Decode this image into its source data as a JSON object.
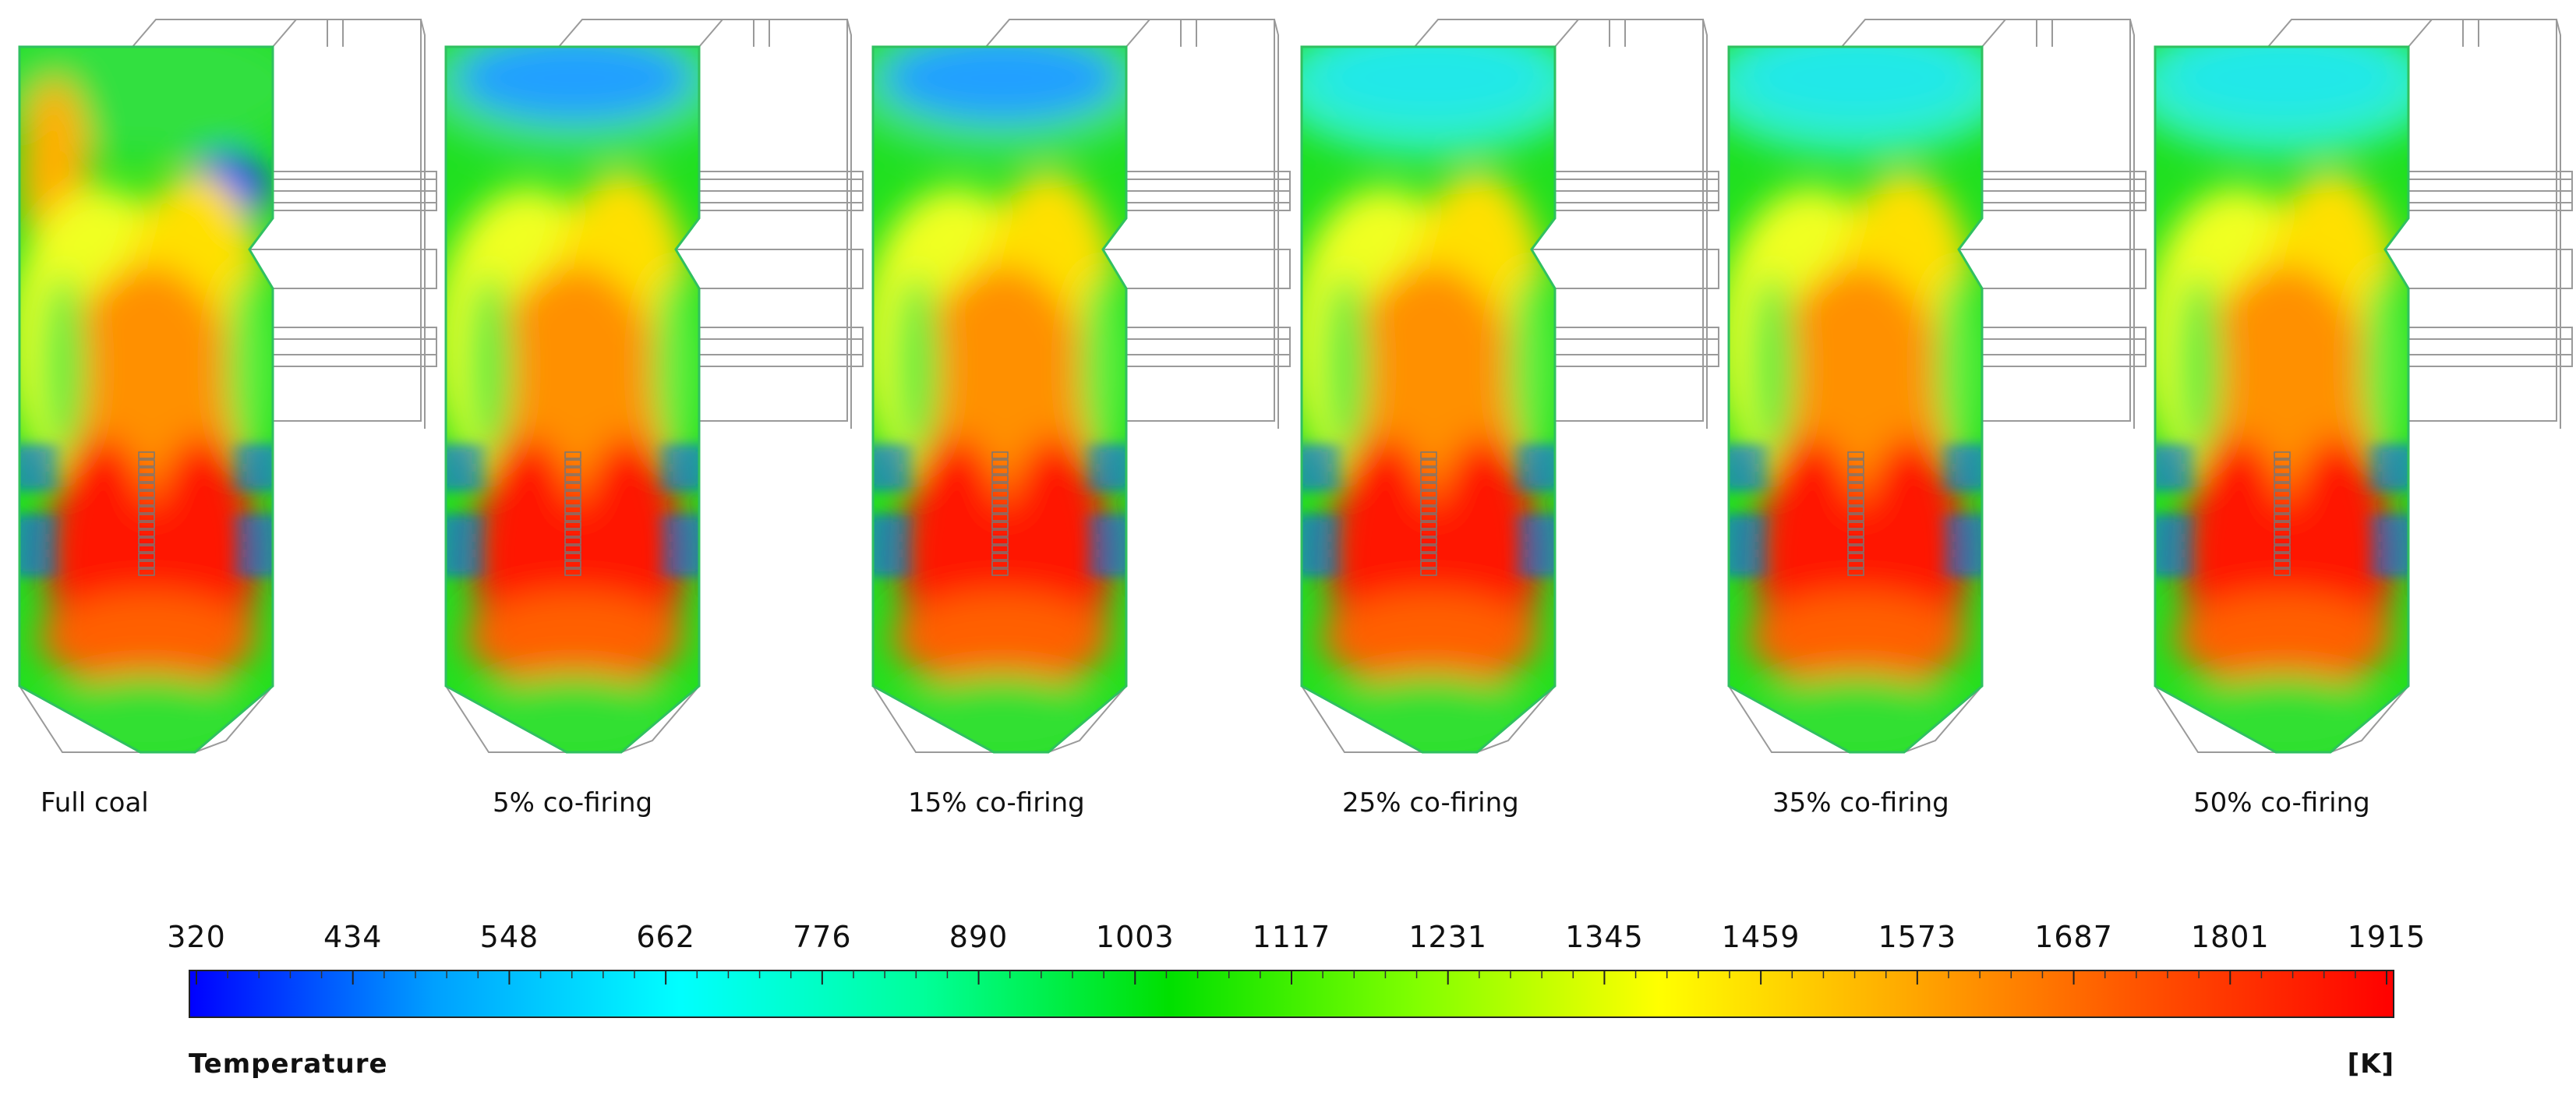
{
  "panels": [
    {
      "caption": "Full coal",
      "blend": 0.0
    },
    {
      "caption": "5% co-firing",
      "blend": 0.05
    },
    {
      "caption": "15% co-firing",
      "blend": 0.15
    },
    {
      "caption": "25% co-firing",
      "blend": 0.25
    },
    {
      "caption": "35% co-firing",
      "blend": 0.35
    },
    {
      "caption": "50% co-firing",
      "blend": 0.5
    }
  ],
  "colorbar": {
    "ticks": [
      "320",
      "434",
      "548",
      "662",
      "776",
      "890",
      "1003",
      "1117",
      "1231",
      "1345",
      "1459",
      "1573",
      "1687",
      "1801",
      "1915"
    ],
    "title": "Temperature",
    "unit": "[K]",
    "stops": [
      "#0000ff",
      "#00a0ff",
      "#00ffff",
      "#00ff99",
      "#00e000",
      "#80ff00",
      "#ffff00",
      "#ffaa00",
      "#ff5000",
      "#ff0000"
    ]
  }
}
